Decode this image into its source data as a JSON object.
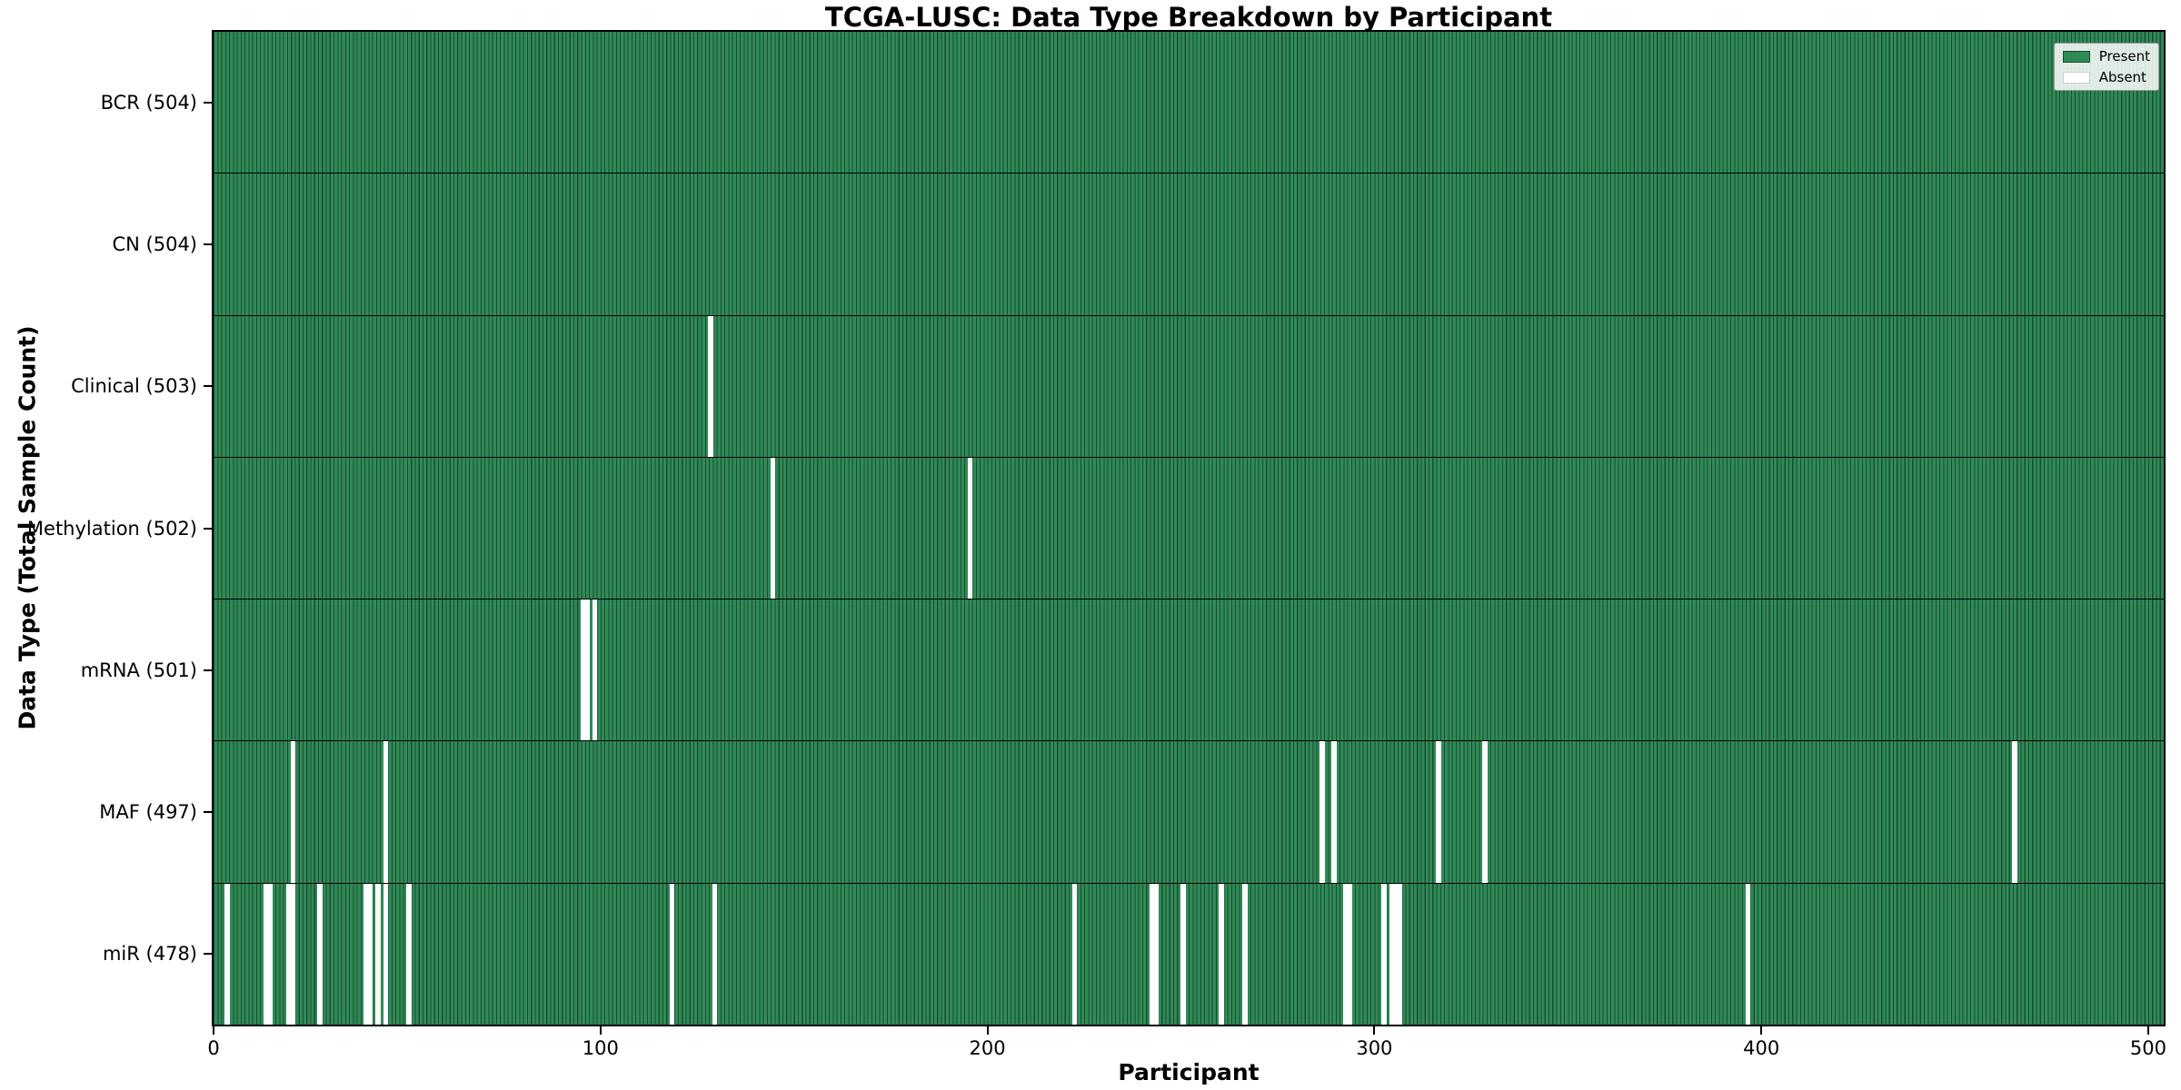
{
  "title": "TCGA-LUSC: Data Type Breakdown by Participant",
  "xlabel": "Participant",
  "ylabel": "Data Type (Total Sample Count)",
  "colors": {
    "present": "#2e8b57",
    "bar_edge": "#1d4a30",
    "absent": "#ffffff",
    "row_divider": "#000000"
  },
  "chart_data": {
    "type": "heatmap",
    "title": "TCGA-LUSC: Data Type Breakdown by Participant",
    "xlabel": "Participant",
    "ylabel": "Data Type (Total Sample Count)",
    "total_participants": 504,
    "x_axis": {
      "min": 0,
      "max": 504,
      "tick_values": [
        0,
        100,
        200,
        300,
        400,
        500
      ],
      "tick_labels": [
        "0",
        "100",
        "200",
        "300",
        "400",
        "500"
      ]
    },
    "legend": [
      {
        "label": "Present",
        "color": "#2e8b57"
      },
      {
        "label": "Absent",
        "color": "#ffffff"
      }
    ],
    "legend_position": "upper right",
    "grid": false,
    "rows": [
      {
        "label": "BCR (504)",
        "data_type": "BCR",
        "present_count": 504,
        "absent_participants": []
      },
      {
        "label": "CN (504)",
        "data_type": "CN",
        "present_count": 504,
        "absent_participants": []
      },
      {
        "label": "Clinical (503)",
        "data_type": "Clinical",
        "present_count": 503,
        "absent_participants": [
          128
        ]
      },
      {
        "label": "Methylation (502)",
        "data_type": "Methylation",
        "present_count": 502,
        "absent_participants": [
          144,
          195
        ]
      },
      {
        "label": "mRNA (501)",
        "data_type": "mRNA",
        "present_count": 501,
        "absent_participants": [
          95,
          96,
          98
        ]
      },
      {
        "label": "MAF (497)",
        "data_type": "MAF",
        "present_count": 497,
        "absent_participants": [
          20,
          44,
          286,
          289,
          316,
          328,
          465
        ]
      },
      {
        "label": "miR (478)",
        "data_type": "miR",
        "present_count": 478,
        "absent_participants": [
          3,
          13,
          14,
          19,
          20,
          27,
          39,
          40,
          42,
          44,
          50,
          118,
          129,
          222,
          242,
          243,
          250,
          260,
          266,
          292,
          293,
          302,
          304,
          305,
          306,
          396
        ]
      }
    ]
  }
}
